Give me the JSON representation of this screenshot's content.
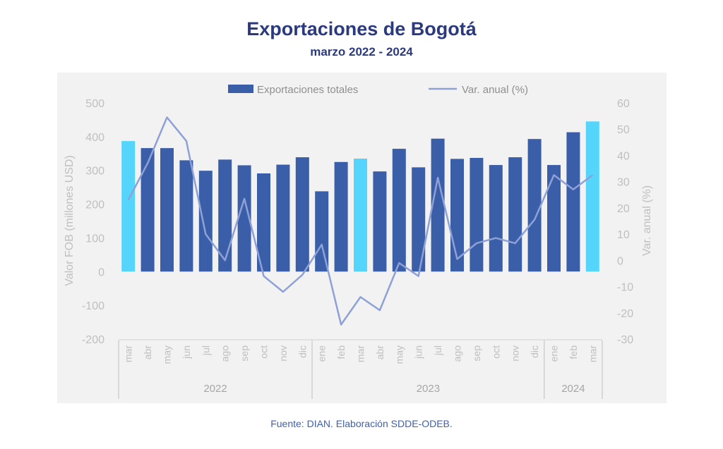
{
  "header": {
    "title": "Exportaciones de Bogotá",
    "subtitle": "marzo 2022 - 2024"
  },
  "footer": {
    "source": "Fuente: DIAN. Elaboración SDDE-ODEB."
  },
  "colors": {
    "bar": "#3b5ea8",
    "bar_highlight": "#55d5fb",
    "line": "#8ea1d6",
    "axis_text": "#bfbfbf",
    "title": "#2b3a7e"
  },
  "chart_data": {
    "type": "bar",
    "combo": "bar+line",
    "categories": [
      "mar",
      "abr",
      "may",
      "jun",
      "jul",
      "ago",
      "sep",
      "oct",
      "nov",
      "dic",
      "ene",
      "feb",
      "mar",
      "abr",
      "may",
      "jun",
      "jul",
      "ago",
      "sep",
      "oct",
      "nov",
      "dic",
      "ene",
      "feb",
      "mar"
    ],
    "highlight_indices": [
      0,
      12,
      24
    ],
    "year_groups": [
      {
        "label": "2022",
        "start": 0,
        "end": 9
      },
      {
        "label": "2023",
        "start": 10,
        "end": 21
      },
      {
        "label": "2024",
        "start": 22,
        "end": 24
      }
    ],
    "series": [
      {
        "name": "Exportaciones totales",
        "type": "bar",
        "axis": "left",
        "values": [
          387,
          366,
          366,
          330,
          299,
          332,
          315,
          291,
          317,
          339,
          238,
          325,
          335,
          297,
          364,
          309,
          394,
          334,
          337,
          316,
          339,
          393,
          316,
          413,
          445
        ]
      },
      {
        "name": "Var. anual (%)",
        "type": "line",
        "axis": "right",
        "values": [
          23,
          37,
          54.5,
          45.5,
          10,
          0,
          23.5,
          -6,
          -12,
          -5.5,
          6,
          -24.5,
          -14,
          -19,
          -1,
          -6,
          31.5,
          0.5,
          6.5,
          8.5,
          6.5,
          15.5,
          32.5,
          27,
          32.5
        ]
      }
    ],
    "y_left": {
      "label": "Valor FOB (millones USD)",
      "lim": [
        -200,
        500
      ],
      "ticks": [
        "500",
        "400",
        "300",
        "200",
        "100",
        "0",
        "-100",
        "-200"
      ]
    },
    "y_right": {
      "label": "Var. anual (%)",
      "lim": [
        -30,
        60
      ],
      "ticks": [
        "60",
        "50",
        "40",
        "30",
        "20",
        "10",
        "0",
        "-10",
        "-20",
        "-30"
      ]
    },
    "legend": {
      "position": "top-center",
      "bar_label": "Exportaciones totales",
      "line_label": "Var. anual (%)"
    }
  }
}
